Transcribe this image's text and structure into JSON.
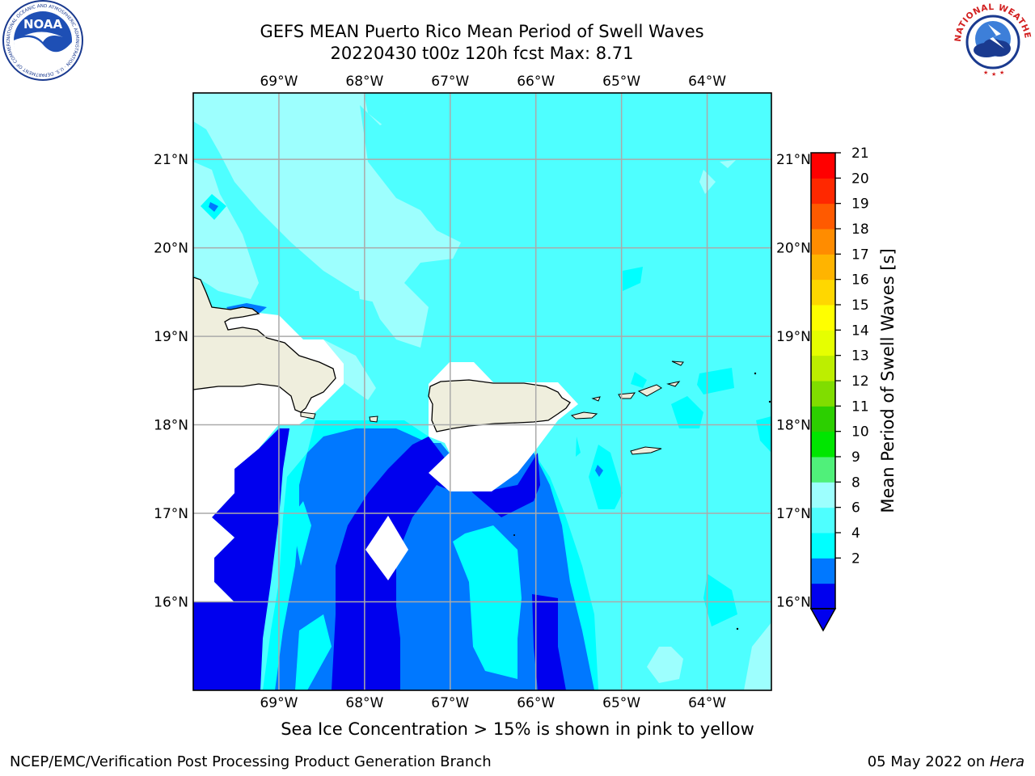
{
  "header": {
    "title_line1": "GEFS MEAN Puerto Rico Mean Period of Swell Waves",
    "title_line2": "20220430 t00z 120h fcst   Max: 8.71"
  },
  "logos": {
    "left": {
      "name": "NOAA",
      "text": "NOAA",
      "icon": "noaa-logo",
      "ring_text": "NATIONAL OCEANIC AND ATMOSPHERIC ADMINISTRATION · U.S. DEPARTMENT OF COMMERCE"
    },
    "right": {
      "name": "National Weather Service",
      "icon": "nws-logo",
      "ring_text": "NATIONAL WEATHER SERVICE"
    }
  },
  "map": {
    "lon_range": [
      -70.0,
      -63.25
    ],
    "lat_range": [
      15.0,
      21.75
    ],
    "lon_ticks": [
      "69°W",
      "68°W",
      "67°W",
      "66°W",
      "65°W",
      "64°W"
    ],
    "lat_ticks": [
      "21°N",
      "20°N",
      "19°N",
      "18°N",
      "17°N",
      "16°N"
    ],
    "grid": true,
    "land_color": "#efeedd",
    "ocean_base_color": "#4effff"
  },
  "colorbar": {
    "label": "Mean Period of Swell Waves [s]",
    "ticks": [
      "21",
      "20",
      "19",
      "18",
      "17",
      "16",
      "15",
      "14",
      "13",
      "12",
      "11",
      "10",
      "9",
      "8",
      "6",
      "4",
      "2"
    ],
    "colors": [
      "#0000ee",
      "#0078ff",
      "#00ffff",
      "#4effff",
      "#9dfffe",
      "#50f07a",
      "#00e600",
      "#2ccf00",
      "#80dd00",
      "#bdee00",
      "#e6ff00",
      "#ffff00",
      "#ffd700",
      "#ffb400",
      "#ff8c00",
      "#ff5a00",
      "#ff2800",
      "#ff0000"
    ],
    "extend": "min"
  },
  "caption": "Sea Ice Concentration > 15% is shown in pink to yellow",
  "footer": {
    "left": "NCEP/EMC/Verification Post Processing Product Generation Branch",
    "date": "05 May 2022 on ",
    "host": "Hera"
  }
}
